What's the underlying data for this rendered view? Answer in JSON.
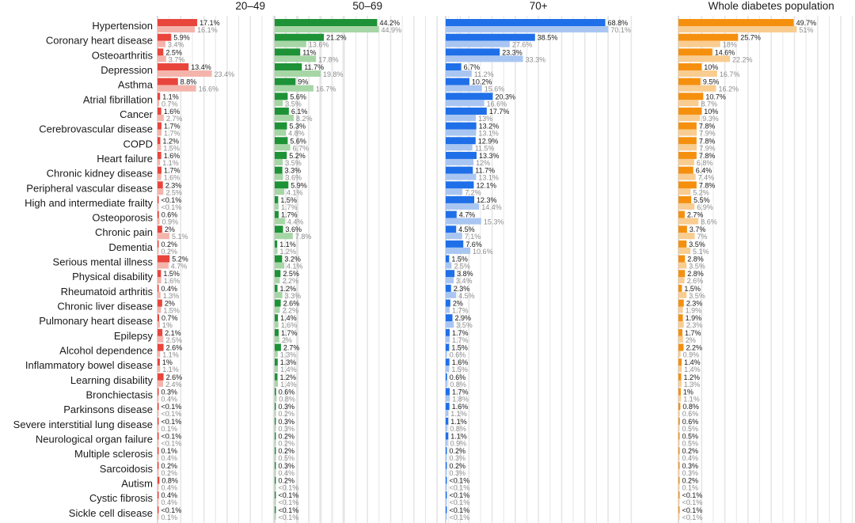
{
  "chart_data": {
    "type": "bar",
    "orientation": "horizontal",
    "categories": [
      "Hypertension",
      "Coronary heart disease",
      "Osteoarthritis",
      "Depression",
      "Asthma",
      "Atrial fibrillation",
      "Cancer",
      "Cerebrovascular disease",
      "COPD",
      "Heart failure",
      "Chronic kidney disease",
      "Peripheral vascular disease",
      "High and intermediate frailty",
      "Osteoporosis",
      "Chronic pain",
      "Dementia",
      "Serious mental illness",
      "Physical disability",
      "Rheumatoid arthritis",
      "Chronic liver disease",
      "Pulmonary heart disease",
      "Epilepsy",
      "Alcohol dependence",
      "Inflammatory bowel disease",
      "Learning disability",
      "Bronchiectasis",
      "Parkinsons disease",
      "Severe interstitial lung disease",
      "Neurological organ failure",
      "Multiple sclerosis",
      "Sarcoidosis",
      "Autism",
      "Cystic fibrosis",
      "Sickle cell disease"
    ],
    "xlim": [
      0,
      80
    ],
    "grid": true,
    "legend": "none",
    "panels": [
      {
        "title": "20–49",
        "dark_color": "#e8453c",
        "light_color": "#f4b4ac",
        "dark_values": [
          17.1,
          5.9,
          2.5,
          13.4,
          8.8,
          1.1,
          1.6,
          1.7,
          1.2,
          1.6,
          1.7,
          2.3,
          0.05,
          0.6,
          2,
          0.2,
          5.2,
          1.5,
          0.4,
          2,
          0.7,
          2.1,
          2.6,
          1,
          2.6,
          0.3,
          0.05,
          0.05,
          0.05,
          0.1,
          0.2,
          0.8,
          0.4,
          0.05
        ],
        "dark_labels": [
          "17.1%",
          "5.9%",
          "2.5%",
          "13.4%",
          "8.8%",
          "1.1%",
          "1.6%",
          "1.7%",
          "1.2%",
          "1.6%",
          "1.7%",
          "2.3%",
          "<0.1%",
          "0.6%",
          "2%",
          "0.2%",
          "5.2%",
          "1.5%",
          "0.4%",
          "2%",
          "0.7%",
          "2.1%",
          "2.6%",
          "1%",
          "2.6%",
          "0.3%",
          "<0.1%",
          "<0.1%",
          "<0.1%",
          "0.1%",
          "0.2%",
          "0.8%",
          "0.4%",
          "<0.1%"
        ],
        "light_values": [
          16.1,
          3.4,
          3.7,
          23.4,
          16.6,
          0.7,
          2.7,
          1.7,
          1.5,
          1.1,
          1.6,
          2.5,
          0.05,
          0.9,
          5.1,
          0.2,
          4.7,
          1.6,
          1.3,
          1.5,
          1,
          2.5,
          1.1,
          1.1,
          2.4,
          0.4,
          0.05,
          0.1,
          0.05,
          0.4,
          0.2,
          0.4,
          0.4,
          0.1
        ],
        "light_labels": [
          "16.1%",
          "3.4%",
          "3.7%",
          "23.4%",
          "16.6%",
          "0.7%",
          "2.7%",
          "1.7%",
          "1.5%",
          "1.1%",
          "1.6%",
          "2.5%",
          "<0.1%",
          "0.9%",
          "5.1%",
          "0.2%",
          "4.7%",
          "1.6%",
          "1.3%",
          "1.5%",
          "1%",
          "2.5%",
          "1.1%",
          "1.1%",
          "2.4%",
          "0.4%",
          "<0.1%",
          "0.1%",
          "<0.1%",
          "0.4%",
          "0.2%",
          "0.4%",
          "0.4%",
          "0.1%"
        ]
      },
      {
        "title": "50–69",
        "dark_color": "#1e9236",
        "light_color": "#a6d6a6",
        "dark_values": [
          44.2,
          21.2,
          11,
          11.7,
          9,
          5.6,
          6.1,
          5.3,
          5.6,
          5.2,
          3.3,
          5.9,
          1.5,
          1.7,
          3.6,
          1.1,
          3.2,
          2.5,
          1.2,
          2.6,
          1.4,
          1.7,
          2.7,
          1.3,
          1.2,
          0.6,
          0.3,
          0.3,
          0.2,
          0.2,
          0.3,
          0.2,
          0.05,
          0.05
        ],
        "dark_labels": [
          "44.2%",
          "21.2%",
          "11%",
          "11.7%",
          "9%",
          "5.6%",
          "6.1%",
          "5.3%",
          "5.6%",
          "5.2%",
          "3.3%",
          "5.9%",
          "1.5%",
          "1.7%",
          "3.6%",
          "1.1%",
          "3.2%",
          "2.5%",
          "1.2%",
          "2.6%",
          "1.4%",
          "1.7%",
          "2.7%",
          "1.3%",
          "1.2%",
          "0.6%",
          "0.3%",
          "0.3%",
          "0.2%",
          "0.2%",
          "0.3%",
          "0.2%",
          "<0.1%",
          "<0.1%"
        ],
        "light_values": [
          44.9,
          13.6,
          17.8,
          19.8,
          16.7,
          3.5,
          8.2,
          4.8,
          6.7,
          3.5,
          3.6,
          4.1,
          1.7,
          4.4,
          7.8,
          1.2,
          4.1,
          2.2,
          3.3,
          2.2,
          1.6,
          2,
          1.3,
          1.4,
          1.4,
          0.8,
          0.2,
          0.3,
          0.2,
          0.5,
          0.4,
          0.05,
          0.05,
          0.05
        ],
        "light_labels": [
          "44.9%",
          "13.6%",
          "17.8%",
          "19.8%",
          "16.7%",
          "3.5%",
          "8.2%",
          "4.8%",
          "6.7%",
          "3.5%",
          "3.6%",
          "4.1%",
          "1.7%",
          "4.4%",
          "7.8%",
          "1.2%",
          "4.1%",
          "2.2%",
          "3.3%",
          "2.2%",
          "1.6%",
          "2%",
          "1.3%",
          "1.4%",
          "1.4%",
          "0.8%",
          "0.2%",
          "0.3%",
          "0.2%",
          "0.5%",
          "0.4%",
          "<0.1%",
          "<0.1%",
          "<0.1%"
        ]
      },
      {
        "title": "70+",
        "dark_color": "#1f6fe8",
        "light_color": "#a9c6f2",
        "dark_values": [
          68.8,
          38.5,
          23.3,
          6.7,
          10.2,
          20.3,
          17.7,
          13.2,
          12.9,
          13.3,
          11.7,
          12.1,
          12.3,
          4.7,
          4.5,
          7.6,
          1.5,
          3.8,
          2.3,
          2,
          2.9,
          1.7,
          1.5,
          1.6,
          0.6,
          1.7,
          1.6,
          1.1,
          1.1,
          0.2,
          0.2,
          0.05,
          0.05,
          0.05
        ],
        "dark_labels": [
          "68.8%",
          "38.5%",
          "23.3%",
          "6.7%",
          "10.2%",
          "20.3%",
          "17.7%",
          "13.2%",
          "12.9%",
          "13.3%",
          "11.7%",
          "12.1%",
          "12.3%",
          "4.7%",
          "4.5%",
          "7.6%",
          "1.5%",
          "3.8%",
          "2.3%",
          "2%",
          "2.9%",
          "1.7%",
          "1.5%",
          "1.6%",
          "0.6%",
          "1.7%",
          "1.6%",
          "1.1%",
          "1.1%",
          "0.2%",
          "0.2%",
          "<0.1%",
          "<0.1%",
          "<0.1%"
        ],
        "light_values": [
          70.1,
          27.6,
          33.3,
          11.2,
          15.6,
          16.6,
          13,
          13.1,
          11.5,
          12,
          13.1,
          7.2,
          14.4,
          15.3,
          7.1,
          10.6,
          2.5,
          3.4,
          4.5,
          1.7,
          3.5,
          1.7,
          0.6,
          1.5,
          0.8,
          1.8,
          1.1,
          0.8,
          0.9,
          0.3,
          0.3,
          0.05,
          0.05,
          0.05
        ],
        "light_labels": [
          "70.1%",
          "27.6%",
          "33.3%",
          "11.2%",
          "15.6%",
          "16.6%",
          "13%",
          "13.1%",
          "11.5%",
          "12%",
          "13.1%",
          "7.2%",
          "14.4%",
          "15.3%",
          "7.1%",
          "10.6%",
          "2.5%",
          "3.4%",
          "4.5%",
          "1.7%",
          "3.5%",
          "1.7%",
          "0.6%",
          "1.5%",
          "0.8%",
          "1.8%",
          "1.1%",
          "0.8%",
          "0.9%",
          "0.3%",
          "0.3%",
          "<0.1%",
          "<0.1%",
          "<0.1%"
        ]
      },
      {
        "title": "Whole diabetes population",
        "dark_color": "#f5900f",
        "light_color": "#f9cc90",
        "dark_values": [
          49.7,
          25.7,
          14.6,
          10,
          9.5,
          10.7,
          10,
          7.8,
          7.8,
          7.8,
          6.4,
          7.8,
          5.5,
          2.7,
          3.7,
          3.5,
          2.8,
          2.8,
          1.5,
          2.3,
          1.9,
          1.7,
          2.2,
          1.4,
          1.2,
          1,
          0.8,
          0.6,
          0.5,
          0.2,
          0.3,
          0.2,
          0.05,
          0.05
        ],
        "dark_labels": [
          "49.7%",
          "25.7%",
          "14.6%",
          "10%",
          "9.5%",
          "10.7%",
          "10%",
          "7.8%",
          "7.8%",
          "7.8%",
          "6.4%",
          "7.8%",
          "5.5%",
          "2.7%",
          "3.7%",
          "3.5%",
          "2.8%",
          "2.8%",
          "1.5%",
          "2.3%",
          "1.9%",
          "1.7%",
          "2.2%",
          "1.4%",
          "1.2%",
          "1%",
          "0.8%",
          "0.6%",
          "0.5%",
          "0.2%",
          "0.3%",
          "0.2%",
          "<0.1%",
          "<0.1%"
        ],
        "light_values": [
          51,
          18,
          22.2,
          16.7,
          16.2,
          8.7,
          9.3,
          7.9,
          7.9,
          6.8,
          7.4,
          5.2,
          6.9,
          8.6,
          7,
          5.1,
          3.5,
          2.6,
          3.5,
          1.9,
          2.3,
          2,
          0.9,
          1.4,
          1.3,
          1.1,
          0.6,
          0.5,
          0.5,
          0.4,
          0.3,
          0.1,
          0.05,
          0.05
        ],
        "light_labels": [
          "51%",
          "18%",
          "22.2%",
          "16.7%",
          "16.2%",
          "8.7%",
          "9.3%",
          "7.9%",
          "7.9%",
          "6.8%",
          "7.4%",
          "5.2%",
          "6.9%",
          "8.6%",
          "7%",
          "5.1%",
          "3.5%",
          "2.6%",
          "3.5%",
          "1.9%",
          "2.3%",
          "2%",
          "0.9%",
          "1.4%",
          "1.3%",
          "1.1%",
          "0.6%",
          "0.5%",
          "0.5%",
          "0.4%",
          "0.3%",
          "0.1%",
          "<0.1%",
          "<0.1%"
        ]
      }
    ]
  }
}
